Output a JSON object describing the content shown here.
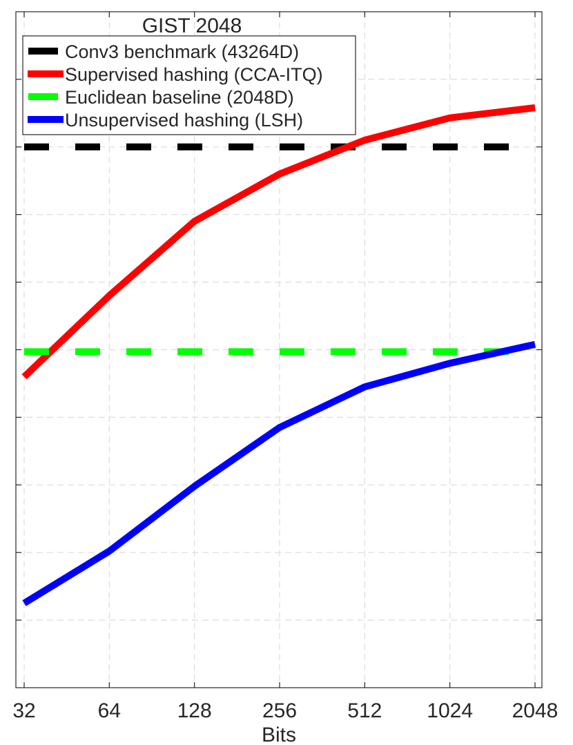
{
  "chart_data": {
    "type": "line",
    "title": "GIST 2048",
    "xlabel": "Bits",
    "ylabel": "",
    "x_scale": "log2",
    "x": [
      32,
      64,
      128,
      256,
      512,
      1024,
      2048
    ],
    "x_tick_labels": [
      "32",
      "64",
      "128",
      "256",
      "512",
      "1024",
      "2048"
    ],
    "ylim": [
      0,
      10
    ],
    "grid": true,
    "legend_position": "top-left",
    "series": [
      {
        "name": "Conv3 benchmark (43264D)",
        "color": "#000000",
        "style": "dashed",
        "values": [
          8,
          8,
          8,
          8,
          8,
          8,
          8
        ]
      },
      {
        "name": "Supervised hashing (CCA-ITQ)",
        "color": "#ff0000",
        "style": "solid",
        "values": [
          4.6,
          5.8,
          6.9,
          7.6,
          8.1,
          8.43,
          8.58
        ]
      },
      {
        "name": "Euclidean baseline (2048D)",
        "color": "#00ff00",
        "style": "dashed",
        "values": [
          4.97,
          4.97,
          4.97,
          4.97,
          4.97,
          4.97,
          4.97
        ]
      },
      {
        "name": "Unsupervised hashing (LSH)",
        "color": "#0000ff",
        "style": "solid",
        "values": [
          1.25,
          2.02,
          2.98,
          3.85,
          4.45,
          4.8,
          5.08
        ]
      }
    ]
  }
}
